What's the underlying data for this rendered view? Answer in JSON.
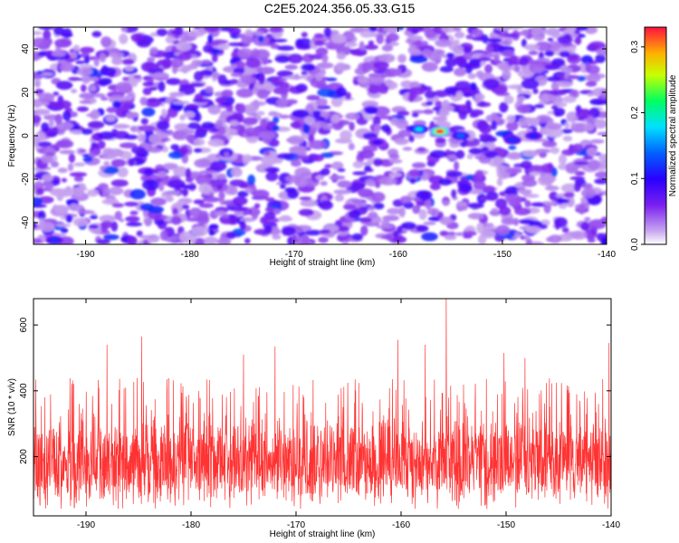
{
  "title": "C2E5.2024.356.05.33.G15",
  "chart_data": [
    {
      "type": "heatmap",
      "xlabel": "Height of straight line (km)",
      "ylabel": "Frequency (Hz)",
      "xlim": [
        -195,
        -140
      ],
      "ylim": [
        -50,
        50
      ],
      "x_ticks": [
        -190,
        -180,
        -170,
        -160,
        -150,
        -140
      ],
      "y_ticks": [
        -40,
        -20,
        0,
        20,
        40
      ],
      "colorbar": {
        "label": "Normalized spectral amplitude",
        "range": [
          0.0,
          0.33
        ],
        "ticks": [
          0.0,
          0.1,
          0.2,
          0.3
        ],
        "colormap": [
          "#ffffff",
          "#8a2be2",
          "#5a00ff",
          "#0000ff",
          "#00ffff",
          "#00ff00",
          "#ffff00",
          "#ff0000"
        ]
      },
      "hotspots": [
        {
          "x": -156,
          "y": 2,
          "value": 0.33
        },
        {
          "x": -158,
          "y": 3,
          "value": 0.18
        },
        {
          "x": -154,
          "y": 0,
          "value": 0.14
        },
        {
          "x": -149,
          "y": -2,
          "value": 0.12
        },
        {
          "x": -147,
          "y": 0,
          "value": 0.11
        },
        {
          "x": -193,
          "y": -48,
          "value": 0.12
        },
        {
          "x": -162,
          "y": -3,
          "value": 0.09
        }
      ]
    },
    {
      "type": "line",
      "xlabel": "Height of straight line (km)",
      "ylabel": "SNR (10 * v/v)",
      "xlim": [
        -195,
        -140
      ],
      "ylim": [
        20,
        680
      ],
      "x_ticks": [
        -190,
        -180,
        -170,
        -160,
        -150,
        -140
      ],
      "y_ticks": [
        200,
        400,
        600
      ],
      "series": [
        {
          "color": "#ff3333",
          "peaks": [
            {
              "x": -188,
              "y": 540
            },
            {
              "x": -184.7,
              "y": 565
            },
            {
              "x": -175,
              "y": 510
            },
            {
              "x": -172,
              "y": 535
            },
            {
              "x": -160.3,
              "y": 555
            },
            {
              "x": -157.7,
              "y": 540
            },
            {
              "x": -155.7,
              "y": 680
            },
            {
              "x": -150.2,
              "y": 515
            },
            {
              "x": -148.2,
              "y": 500
            },
            {
              "x": -140.2,
              "y": 545
            }
          ]
        }
      ]
    }
  ]
}
